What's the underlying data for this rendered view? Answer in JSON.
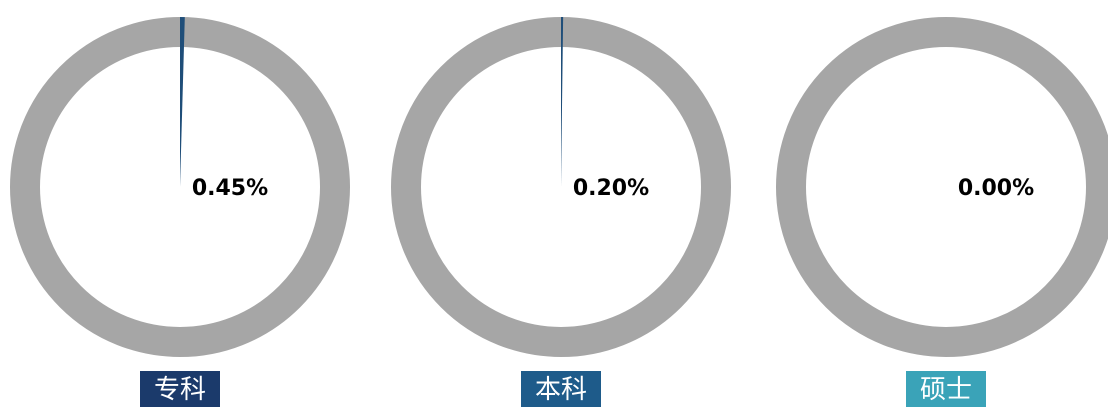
{
  "chart_data": {
    "type": "pie",
    "categories": [
      "专科",
      "本科",
      "硕士"
    ],
    "values": [
      0.45,
      0.2,
      0.0
    ],
    "value_labels": [
      "0.45%",
      "0.20%",
      "0.00%"
    ],
    "unit": "%",
    "ring_color": "#a6a6a6",
    "segment_color": "#1f4e79",
    "label_colors": [
      "#1b3a6b",
      "#1e5b8a",
      "#3aa3b8"
    ]
  }
}
